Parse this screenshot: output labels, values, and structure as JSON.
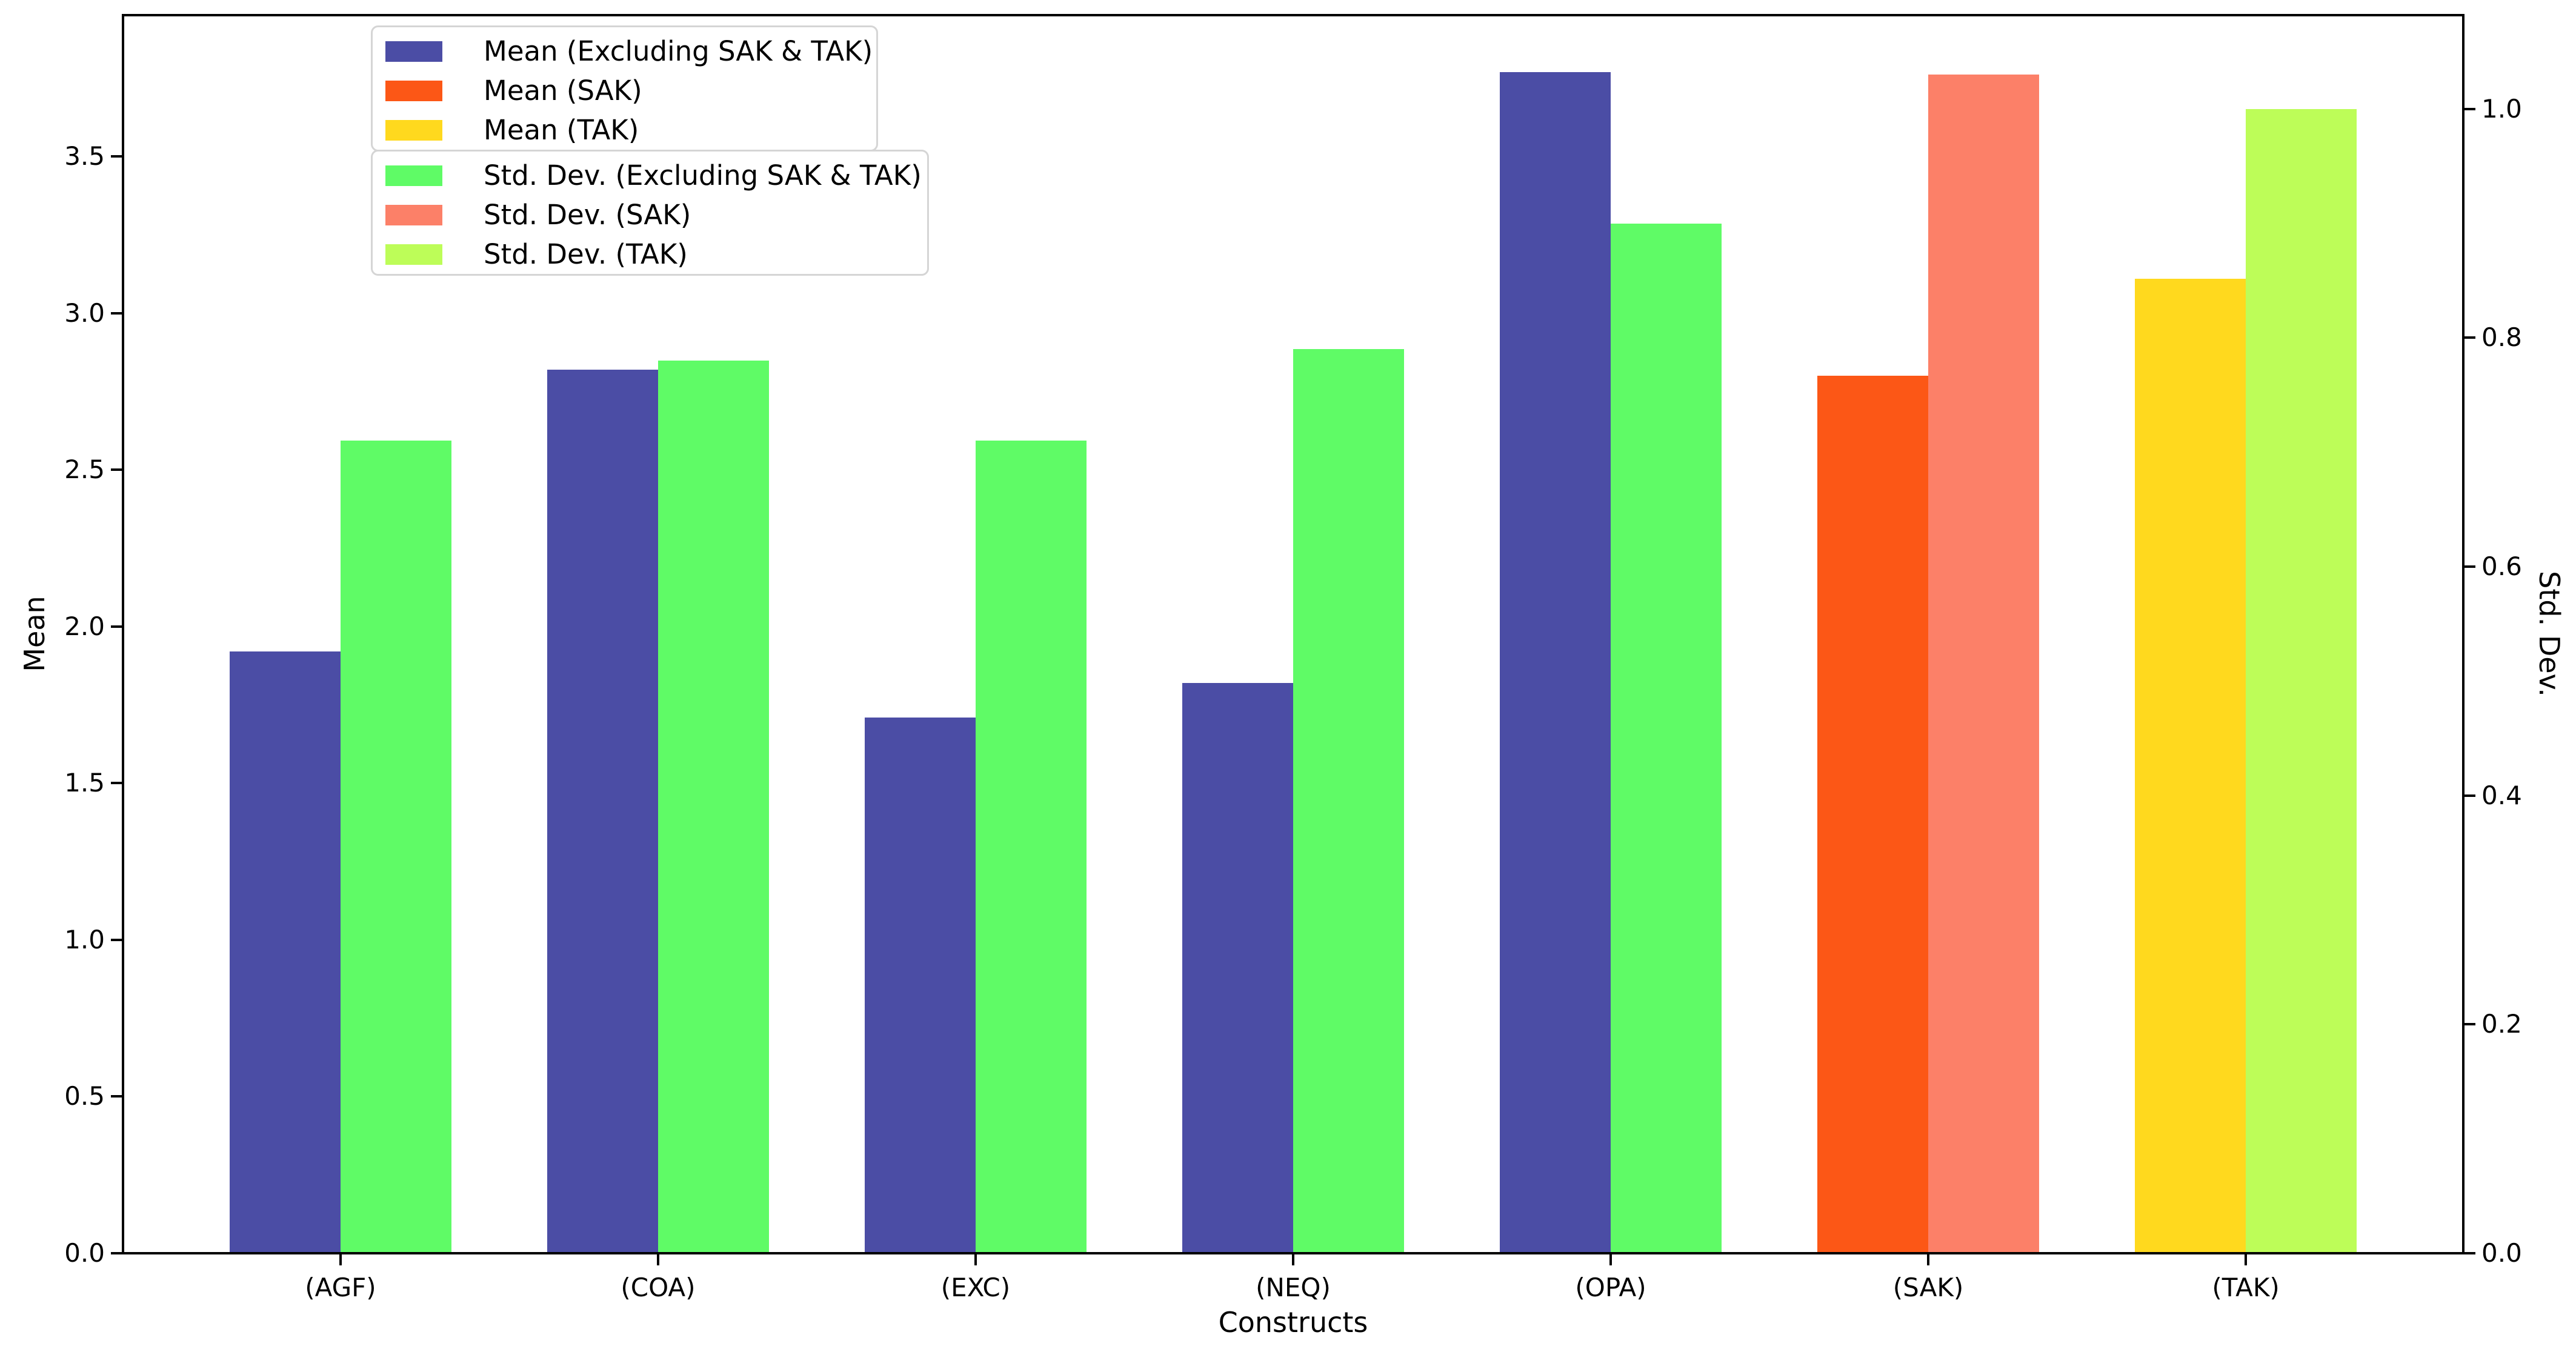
{
  "chart_data": {
    "type": "bar",
    "title": "",
    "categories": [
      "(AGF)",
      "(COA)",
      "(EXC)",
      "(NEQ)",
      "(OPA)",
      "(SAK)",
      "(TAK)"
    ],
    "series": [
      {
        "name": "Mean",
        "axis": "left",
        "values": [
          1.92,
          2.82,
          1.71,
          1.82,
          3.77,
          2.8,
          3.11
        ],
        "colors": [
          "#4b4da5",
          "#4b4da5",
          "#4b4da5",
          "#4b4da5",
          "#4b4da5",
          "#fc5716",
          "#ffd91e"
        ]
      },
      {
        "name": "Std. Dev.",
        "axis": "right",
        "values": [
          0.71,
          0.78,
          0.71,
          0.79,
          0.9,
          1.03,
          1.0
        ],
        "colors": [
          "#5ffb66",
          "#5ffb66",
          "#5ffb66",
          "#5ffb66",
          "#5ffb66",
          "#fc8068",
          "#bdfd58"
        ]
      }
    ],
    "xlabel": "Constructs",
    "left_axis": {
      "label": "Mean",
      "tick_labels": [
        "0.0",
        "0.5",
        "1.0",
        "1.5",
        "2.0",
        "2.5",
        "3.0",
        "3.5"
      ],
      "tick_values": [
        0,
        0.5,
        1,
        1.5,
        2,
        2.5,
        3,
        3.5
      ],
      "ylim": [
        0,
        3.951
      ]
    },
    "right_axis": {
      "label": "Std. Dev.",
      "tick_labels": [
        "0.0",
        "0.2",
        "0.4",
        "0.6",
        "0.8",
        "1.0"
      ],
      "tick_values": [
        0,
        0.2,
        0.4,
        0.6,
        0.8,
        1.0
      ],
      "ylim": [
        0,
        1.082
      ]
    },
    "xlim": [
      -0.685,
      6.685
    ],
    "bar_width_frac": 0.35,
    "grid": false,
    "legend_position": "upper left",
    "legends": [
      {
        "entries": [
          {
            "label": "Mean (Excluding SAK & TAK)",
            "color": "#4b4da5"
          },
          {
            "label": "Mean (SAK)",
            "color": "#fc5716"
          },
          {
            "label": "Mean (TAK)",
            "color": "#ffd91e"
          }
        ]
      },
      {
        "entries": [
          {
            "label": "Std. Dev. (Excluding SAK & TAK)",
            "color": "#5ffb66"
          },
          {
            "label": "Std. Dev. (SAK)",
            "color": "#fc8068"
          },
          {
            "label": "Std. Dev. (TAK)",
            "color": "#bdfd58"
          }
        ]
      }
    ],
    "colors": {
      "spine": "#000000",
      "background": "#ffffff",
      "legend_border": "#d5d5d5"
    }
  }
}
